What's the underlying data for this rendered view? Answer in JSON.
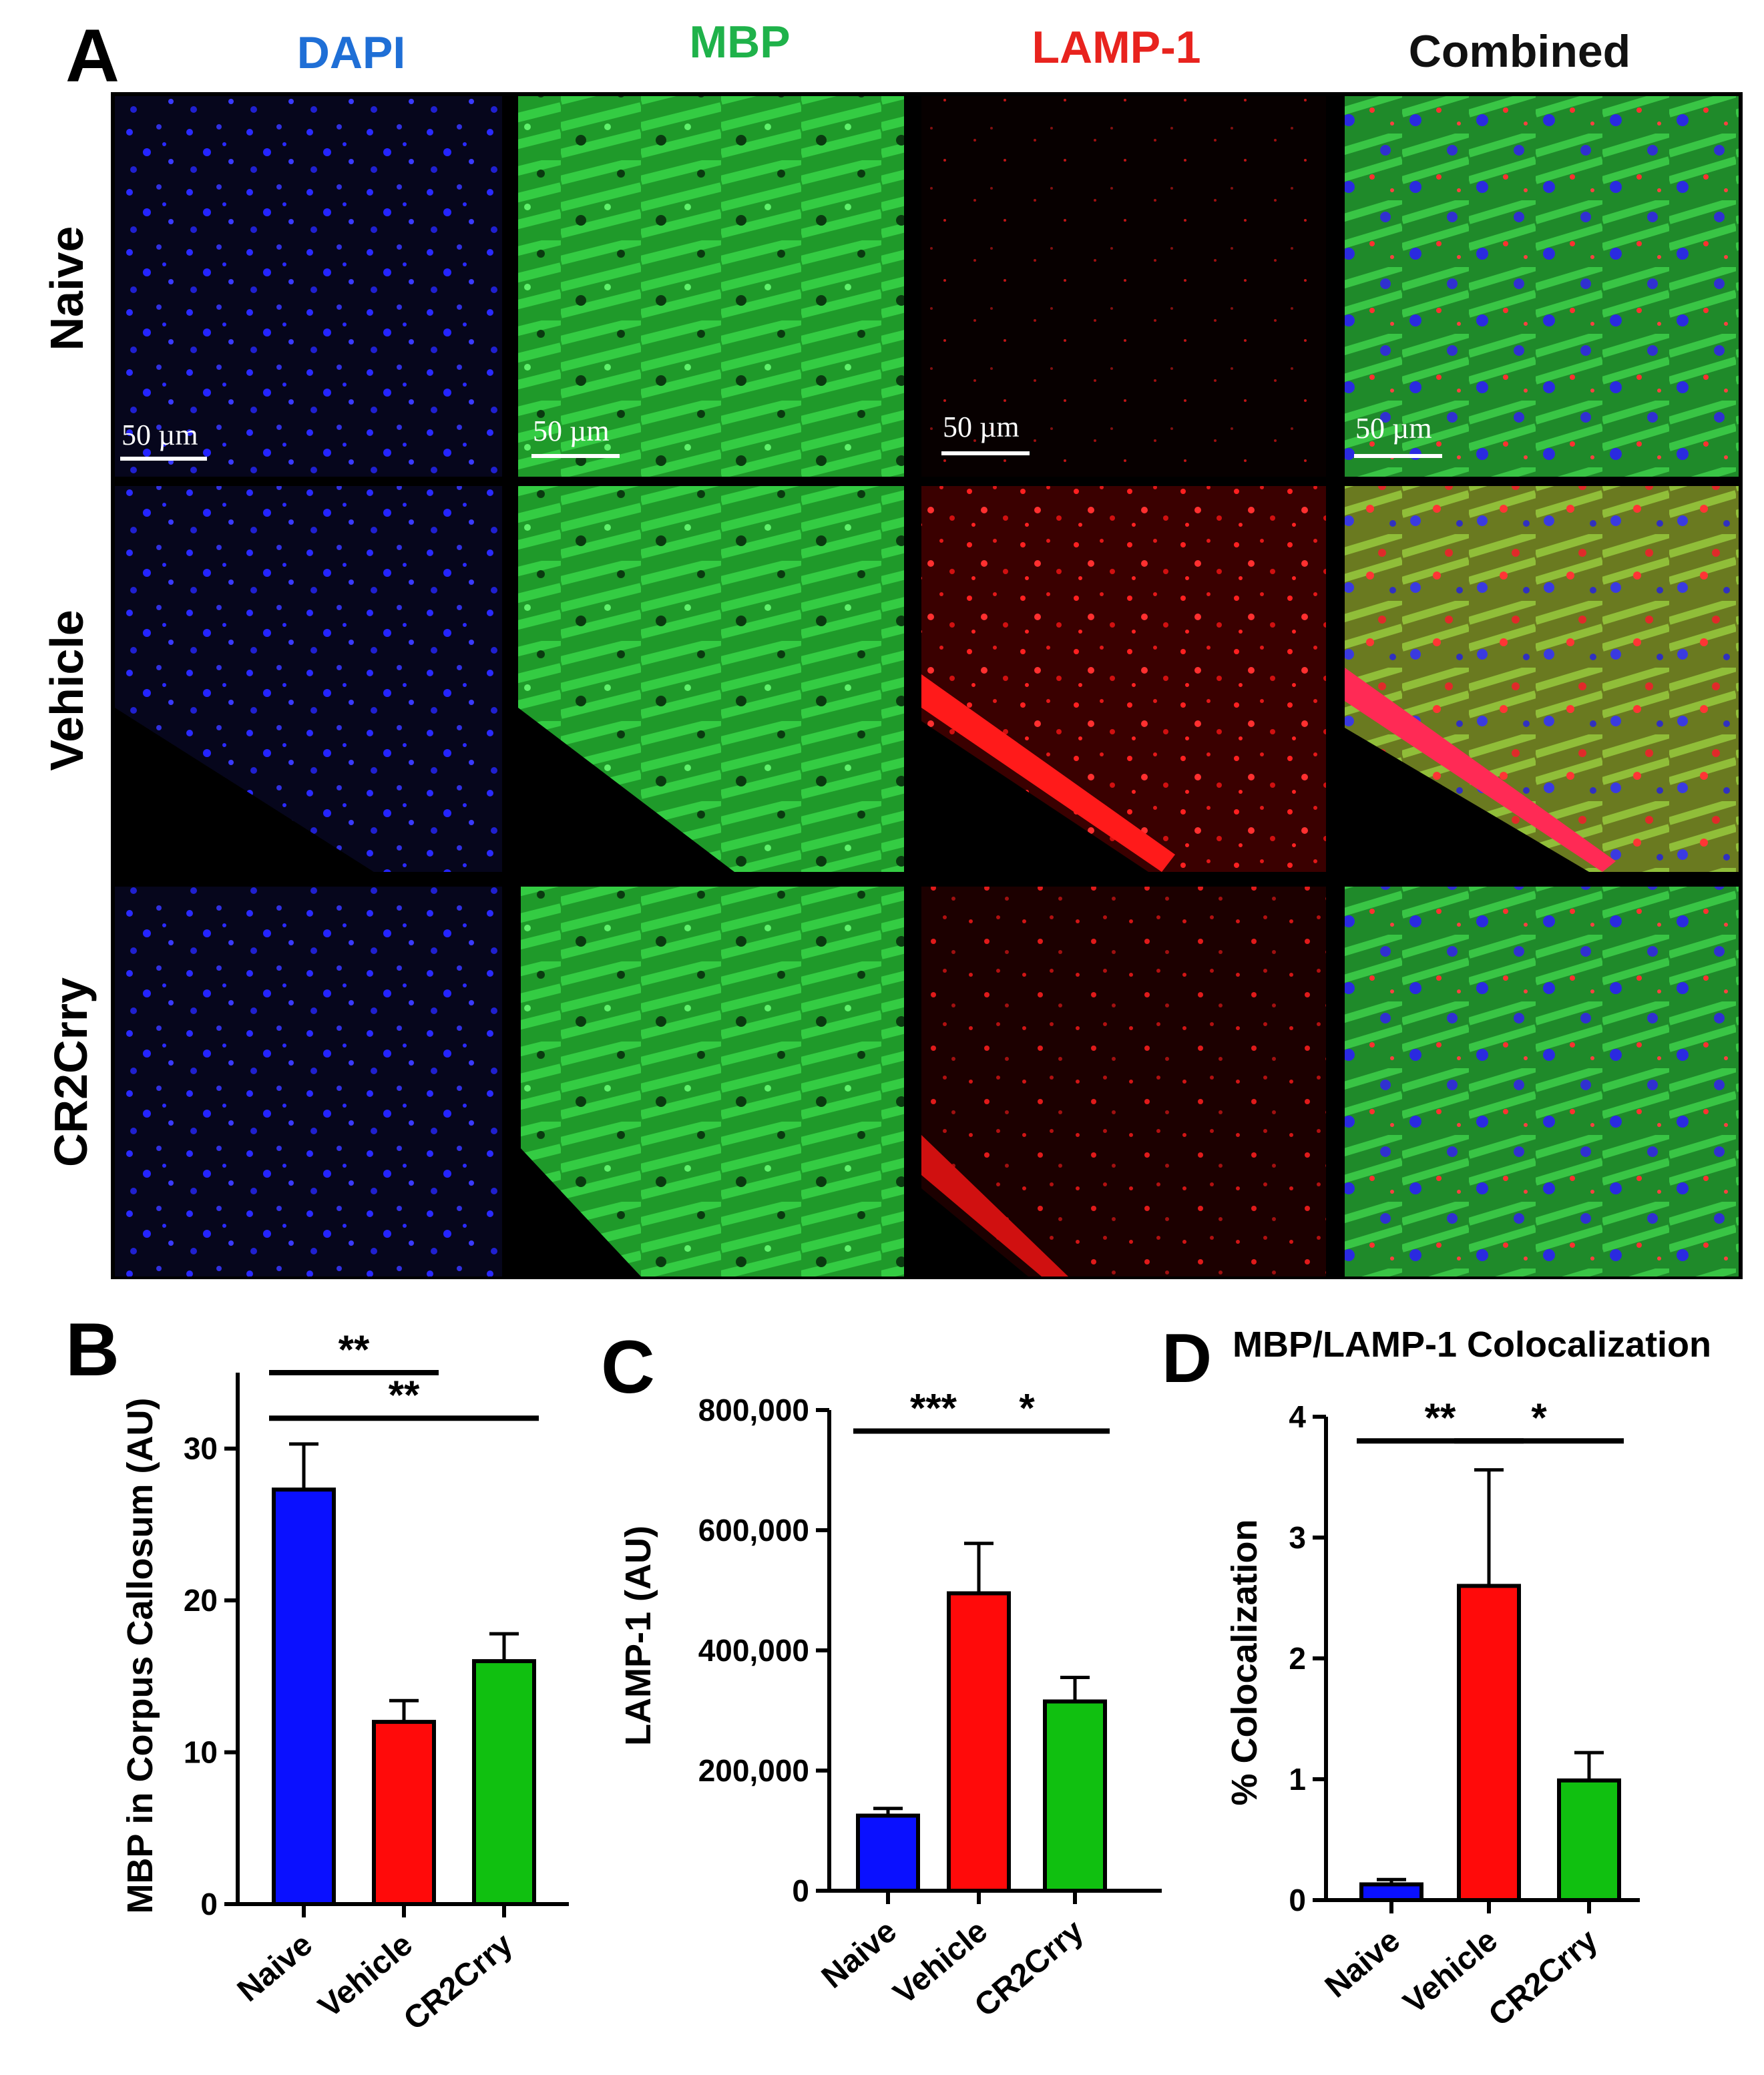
{
  "panel_a": {
    "letter": "A",
    "columns": [
      {
        "label": "DAPI",
        "color": "#1f6fd6"
      },
      {
        "label": "MBP",
        "color": "#1fb24a"
      },
      {
        "label": "LAMP-1",
        "color": "#e8231e"
      },
      {
        "label": "Combined",
        "color": "#111111"
      }
    ],
    "rows": [
      {
        "label": "Naive"
      },
      {
        "label": "Vehicle"
      },
      {
        "label": "CR2Crry"
      }
    ],
    "scale_bar_label": "50 µm",
    "channel_colors": {
      "dapi": "#2a2aff",
      "mbp": "#2fd43a",
      "lamp": "#ff1a1a"
    }
  },
  "series_colors": [
    "#0a10ff",
    "#ff0a0a",
    "#10c010"
  ],
  "chart_data": [
    {
      "panel": "B",
      "type": "bar",
      "title": "",
      "ylabel": "MBP in Corpus Callosum  (AU)",
      "categories": [
        "Naive",
        "Vehicle",
        "CR2Crry"
      ],
      "values": [
        27.3,
        12.0,
        16.0
      ],
      "errors": [
        3.0,
        1.4,
        1.8
      ],
      "ylim": [
        0,
        35
      ],
      "yticks": [
        0,
        10,
        20,
        30
      ],
      "ytick_labels": [
        "0",
        "10",
        "20",
        "30"
      ],
      "significance": [
        {
          "from": 0,
          "to": 1,
          "label": "**",
          "y": 35.0
        },
        {
          "from": 0,
          "to": 2,
          "label": "**",
          "y": 32.0
        }
      ]
    },
    {
      "panel": "C",
      "type": "bar",
      "title": "",
      "ylabel": "LAMP-1 (AU)",
      "categories": [
        "Naive",
        "Vehicle",
        "CR2Crry"
      ],
      "values": [
        125000,
        495000,
        315000
      ],
      "errors": [
        12000,
        83000,
        40000
      ],
      "ylim": [
        0,
        800000
      ],
      "yticks": [
        0,
        200000,
        400000,
        600000,
        800000
      ],
      "ytick_labels": [
        "0",
        "200,000",
        "400,000",
        "600,000",
        "800,000"
      ],
      "significance": [
        {
          "from": 0,
          "to": 1,
          "label": "***",
          "y": 765000
        },
        {
          "from": 1,
          "to": 2,
          "label": "*",
          "y": 765000
        }
      ]
    },
    {
      "panel": "D",
      "type": "bar",
      "title": "MBP/LAMP-1 Colocalization",
      "ylabel": "% Colocalization",
      "categories": [
        "Naive",
        "Vehicle",
        "CR2Crry"
      ],
      "values": [
        0.13,
        2.6,
        0.99
      ],
      "errors": [
        0.04,
        0.96,
        0.23
      ],
      "ylim": [
        0,
        4
      ],
      "yticks": [
        0,
        1,
        2,
        3,
        4
      ],
      "ytick_labels": [
        "0",
        "1",
        "2",
        "3",
        "4"
      ],
      "significance": [
        {
          "from": 0,
          "to": 1,
          "label": "**",
          "y": 3.8
        },
        {
          "from": 1,
          "to": 2,
          "label": "*",
          "y": 3.8
        }
      ]
    }
  ]
}
